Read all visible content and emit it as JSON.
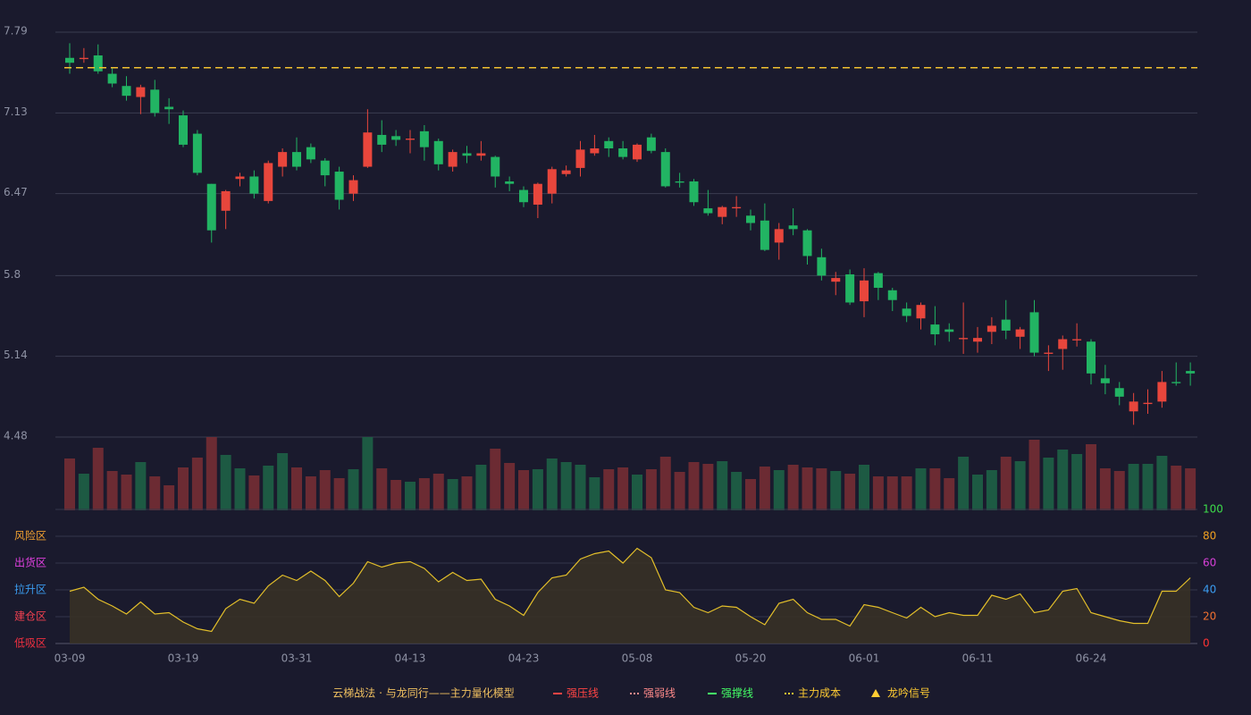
{
  "chart_data": [
    {
      "type": "candlestick",
      "ylim": [
        4.48,
        7.79
      ],
      "yticks": [
        4.48,
        5.14,
        5.8,
        6.47,
        7.13,
        7.79
      ],
      "grid": true,
      "up_color": "#e8463c",
      "down_color": "#22b463",
      "cost_line": 7.5,
      "cost_color": "#f2c230",
      "open": [
        7.58,
        7.57,
        7.6,
        7.45,
        7.35,
        7.26,
        7.32,
        7.18,
        7.11,
        6.96,
        6.55,
        6.33,
        6.59,
        6.61,
        6.41,
        6.69,
        6.81,
        6.85,
        6.74,
        6.65,
        6.47,
        6.69,
        6.95,
        6.94,
        6.91,
        6.98,
        6.9,
        6.69,
        6.8,
        6.78,
        6.77,
        6.57,
        6.5,
        6.38,
        6.47,
        6.63,
        6.68,
        6.8,
        6.9,
        6.84,
        6.75,
        6.93,
        6.81,
        6.57,
        6.57,
        6.35,
        6.28,
        6.35,
        6.29,
        6.25,
        6.07,
        6.21,
        6.17,
        5.95,
        5.75,
        5.81,
        5.59,
        5.82,
        5.68,
        5.53,
        5.45,
        5.4,
        5.36,
        5.28,
        5.26,
        5.34,
        5.44,
        5.3,
        5.5,
        5.16,
        5.2,
        5.27,
        5.26,
        4.96,
        4.88,
        4.69,
        4.75,
        4.77,
        4.93,
        5.02
      ],
      "high": [
        7.7,
        7.66,
        7.69,
        7.5,
        7.43,
        7.36,
        7.4,
        7.25,
        7.15,
        6.99,
        6.55,
        6.5,
        6.64,
        6.66,
        6.74,
        6.84,
        6.93,
        6.88,
        6.76,
        6.69,
        6.62,
        7.16,
        7.07,
        6.99,
        6.99,
        7.03,
        6.92,
        6.83,
        6.86,
        6.9,
        6.78,
        6.61,
        6.53,
        6.56,
        6.69,
        6.7,
        6.9,
        6.95,
        6.93,
        6.9,
        6.88,
        6.96,
        6.84,
        6.64,
        6.59,
        6.5,
        6.37,
        6.45,
        6.34,
        6.39,
        6.23,
        6.35,
        6.18,
        6.02,
        5.83,
        5.85,
        5.86,
        5.83,
        5.7,
        5.58,
        5.58,
        5.55,
        5.41,
        5.58,
        5.38,
        5.46,
        5.6,
        5.38,
        5.6,
        5.23,
        5.31,
        5.41,
        5.28,
        5.07,
        4.93,
        4.84,
        4.87,
        5.02,
        5.09,
        5.09
      ],
      "low": [
        7.45,
        7.54,
        7.45,
        7.34,
        7.23,
        7.12,
        7.1,
        7.04,
        6.85,
        6.62,
        6.07,
        6.18,
        6.53,
        6.43,
        6.39,
        6.61,
        6.66,
        6.72,
        6.53,
        6.34,
        6.41,
        6.68,
        6.81,
        6.86,
        6.8,
        6.74,
        6.66,
        6.65,
        6.72,
        6.74,
        6.52,
        6.49,
        6.36,
        6.27,
        6.39,
        6.61,
        6.61,
        6.78,
        6.77,
        6.75,
        6.73,
        6.8,
        6.52,
        6.52,
        6.37,
        6.29,
        6.22,
        6.28,
        6.17,
        6.0,
        5.93,
        6.13,
        5.89,
        5.76,
        5.64,
        5.56,
        5.46,
        5.6,
        5.51,
        5.42,
        5.36,
        5.23,
        5.26,
        5.16,
        5.17,
        5.24,
        5.28,
        5.2,
        5.14,
        5.02,
        5.03,
        5.22,
        4.91,
        4.83,
        4.74,
        4.58,
        4.67,
        4.72,
        4.9,
        4.9
      ],
      "close": [
        7.54,
        7.58,
        7.47,
        7.37,
        7.27,
        7.34,
        7.13,
        7.16,
        6.87,
        6.64,
        6.17,
        6.49,
        6.61,
        6.47,
        6.72,
        6.81,
        6.69,
        6.75,
        6.62,
        6.42,
        6.58,
        6.97,
        6.87,
        6.91,
        6.92,
        6.85,
        6.71,
        6.81,
        6.78,
        6.8,
        6.61,
        6.55,
        6.4,
        6.55,
        6.67,
        6.66,
        6.83,
        6.84,
        6.84,
        6.77,
        6.87,
        6.82,
        6.53,
        6.56,
        6.4,
        6.31,
        6.36,
        6.36,
        6.23,
        6.01,
        6.18,
        6.18,
        5.96,
        5.8,
        5.78,
        5.58,
        5.76,
        5.7,
        5.6,
        5.47,
        5.56,
        5.32,
        5.34,
        5.29,
        5.29,
        5.39,
        5.35,
        5.36,
        5.17,
        5.17,
        5.28,
        5.28,
        5.0,
        4.92,
        4.81,
        4.77,
        4.76,
        4.93,
        4.92,
        5.0
      ]
    },
    {
      "type": "bar",
      "values": [
        58,
        41,
        70,
        44,
        40,
        54,
        38,
        28,
        48,
        59,
        82,
        62,
        47,
        39,
        50,
        64,
        48,
        38,
        45,
        36,
        46,
        82,
        47,
        34,
        32,
        36,
        41,
        35,
        38,
        51,
        69,
        53,
        45,
        46,
        58,
        54,
        51,
        37,
        46,
        48,
        40,
        46,
        60,
        43,
        54,
        52,
        55,
        43,
        35,
        49,
        45,
        51,
        48,
        47,
        44,
        41,
        51,
        38,
        38,
        38,
        47,
        47,
        36,
        60,
        40,
        45,
        60,
        55,
        79,
        59,
        68,
        63,
        74,
        47,
        44,
        52,
        52,
        61,
        50,
        47
      ],
      "colors": [
        "#6c2b33",
        "#1d5a43",
        "#6c2b33",
        "#6c2b33",
        "#6c2b33",
        "#1d5a43",
        "#6c2b33",
        "#6c2b33",
        "#6c2b33",
        "#6c2b33",
        "#6c2b33",
        "#1d5a43",
        "#1d5a43",
        "#6c2b33",
        "#1d5a43",
        "#1d5a43",
        "#6c2b33",
        "#6c2b33",
        "#6c2b33",
        "#6c2b33",
        "#1d5a43",
        "#1d5a43",
        "#6c2b33",
        "#6c2b33",
        "#1d5a43",
        "#6c2b33",
        "#6c2b33",
        "#1d5a43",
        "#6c2b33",
        "#1d5a43",
        "#6c2b33",
        "#6c2b33",
        "#6c2b33",
        "#1d5a43",
        "#1d5a43",
        "#1d5a43",
        "#1d5a43",
        "#1d5a43",
        "#6c2b33",
        "#6c2b33",
        "#1d5a43",
        "#6c2b33",
        "#6c2b33",
        "#6c2b33",
        "#6c2b33",
        "#6c2b33",
        "#1d5a43",
        "#1d5a43",
        "#6c2b33",
        "#6c2b33",
        "#1d5a43",
        "#6c2b33",
        "#6c2b33",
        "#6c2b33",
        "#1d5a43",
        "#6c2b33",
        "#1d5a43",
        "#6c2b33",
        "#6c2b33",
        "#6c2b33",
        "#1d5a43",
        "#6c2b33",
        "#6c2b33",
        "#1d5a43",
        "#1d5a43",
        "#1d5a43",
        "#6c2b33",
        "#1d5a43",
        "#6c2b33",
        "#1d5a43",
        "#1d5a43",
        "#1d5a43",
        "#6c2b33",
        "#6c2b33",
        "#6c2b33",
        "#1d5a43",
        "#1d5a43",
        "#1d5a43",
        "#6c2b33",
        "#6c2b33"
      ]
    },
    {
      "type": "line",
      "color": "#e3bf2a",
      "fill": "#3a3326",
      "ylim": [
        0,
        100
      ],
      "yticks": [
        0,
        20,
        40,
        60,
        80,
        100
      ],
      "ytick_colors": [
        "#ff3333",
        "#f07030",
        "#3a9cf0",
        "#d840d8",
        "#f0a020",
        "#3ddc4a"
      ],
      "zones": [
        {
          "label": "风险区",
          "value": 80,
          "color": "#f0a030"
        },
        {
          "label": "出货区",
          "value": 60,
          "color": "#e040e0"
        },
        {
          "label": "拉升区",
          "value": 40,
          "color": "#3a9cf0"
        },
        {
          "label": "建仓区",
          "value": 20,
          "color": "#f04050"
        },
        {
          "label": "低吸区",
          "value": 0,
          "color": "#f03040"
        }
      ],
      "categories": [
        "03-09",
        null,
        null,
        null,
        null,
        null,
        null,
        null,
        "03-19",
        null,
        null,
        null,
        null,
        null,
        null,
        null,
        "03-31",
        null,
        null,
        null,
        null,
        null,
        null,
        null,
        "04-13",
        null,
        null,
        null,
        null,
        null,
        null,
        null,
        "04-23",
        null,
        null,
        null,
        null,
        null,
        null,
        null,
        "05-08",
        null,
        null,
        null,
        null,
        null,
        null,
        null,
        "05-20",
        null,
        null,
        null,
        null,
        null,
        null,
        null,
        "06-01",
        null,
        null,
        null,
        null,
        null,
        null,
        null,
        "06-11",
        null,
        null,
        null,
        null,
        null,
        null,
        null,
        "06-24",
        null,
        null,
        null,
        null,
        null,
        null,
        null
      ],
      "values": [
        39,
        42,
        33,
        28,
        22,
        31,
        22,
        23,
        16,
        11,
        9,
        26,
        33,
        30,
        43,
        51,
        47,
        54,
        47,
        35,
        45,
        61,
        57,
        60,
        61,
        56,
        46,
        53,
        47,
        48,
        33,
        28,
        21,
        38,
        49,
        51,
        63,
        67,
        69,
        60,
        71,
        64,
        40,
        38,
        27,
        23,
        28,
        27,
        20,
        14,
        30,
        33,
        23,
        18,
        18,
        13,
        29,
        27,
        23,
        19,
        27,
        20,
        23,
        21,
        21,
        36,
        33,
        37,
        23,
        25,
        39,
        41,
        23,
        20,
        17,
        15,
        15,
        39,
        39,
        49
      ]
    }
  ],
  "legend": {
    "title": "云梯战法 · 与龙同行——主力量化模型",
    "title_color": "#f0c060",
    "items": [
      {
        "label": "强压线",
        "color": "#ff4444",
        "style": "solid"
      },
      {
        "label": "强弱线",
        "color": "#ff8a8a",
        "style": "dotted"
      },
      {
        "label": "强撑线",
        "color": "#44ff66",
        "style": "solid"
      },
      {
        "label": "主力成本",
        "color": "#ffcc33",
        "style": "dotted"
      },
      {
        "label": "龙吟信号",
        "color": "#ffcc33",
        "style": "triangle"
      }
    ]
  }
}
